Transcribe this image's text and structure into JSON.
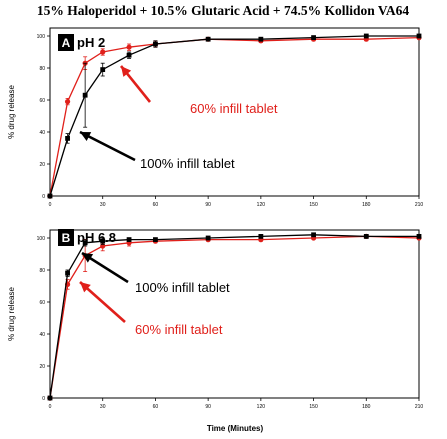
{
  "figure": {
    "title": "15% Haloperidol + 10.5% Glutaric Acid + 74.5% Kollidon VA64",
    "xlabel": "Time (Minutes)"
  },
  "colors": {
    "series_100": "#000000",
    "series_60": "#e0201b"
  },
  "chart_data": [
    {
      "type": "line",
      "panel_letter": "A",
      "panel_label": "pH 2",
      "xlabel": "",
      "ylabel": "% drug release",
      "xlim": [
        0,
        210
      ],
      "ylim": [
        0,
        105
      ],
      "xticks": [
        0,
        30,
        60,
        90,
        120,
        150,
        180,
        210
      ],
      "yticks": [
        0,
        20,
        40,
        60,
        80,
        100
      ],
      "grid": false,
      "annotations": [
        "60% infill tablet",
        "100% infill tablet"
      ],
      "series": [
        {
          "key": "100",
          "x": [
            0,
            10,
            20,
            30,
            45,
            60,
            90,
            120,
            150,
            180,
            210
          ],
          "y": [
            0,
            36,
            63,
            79,
            88,
            95,
            98,
            98,
            99,
            100,
            100
          ],
          "err": [
            0,
            3,
            20,
            4,
            2,
            2,
            1,
            1,
            1,
            1,
            1
          ]
        },
        {
          "key": "60",
          "x": [
            0,
            10,
            20,
            30,
            45,
            60,
            90,
            120,
            150,
            180,
            210
          ],
          "y": [
            0,
            59,
            83,
            90,
            93,
            95,
            98,
            97,
            98,
            98,
            99
          ],
          "err": [
            0,
            2,
            4,
            2,
            2,
            2,
            1,
            1,
            1,
            1,
            1
          ]
        }
      ]
    },
    {
      "type": "line",
      "panel_letter": "B",
      "panel_label": "pH 6.8",
      "xlabel": "Time (Minutes)",
      "ylabel": "% drug release",
      "xlim": [
        0,
        210
      ],
      "ylim": [
        0,
        105
      ],
      "xticks": [
        0,
        30,
        60,
        90,
        120,
        150,
        180,
        210
      ],
      "yticks": [
        0,
        20,
        40,
        60,
        80,
        100
      ],
      "grid": false,
      "annotations": [
        "100% infill tablet",
        "60% infill tablet"
      ],
      "series": [
        {
          "key": "100",
          "x": [
            0,
            10,
            20,
            30,
            45,
            60,
            90,
            120,
            150,
            180,
            210
          ],
          "y": [
            0,
            78,
            97,
            98,
            99,
            99,
            100,
            101,
            102,
            101,
            101
          ],
          "err": [
            0,
            2,
            2,
            2,
            1,
            1,
            1,
            1,
            1,
            1,
            1
          ]
        },
        {
          "key": "60",
          "x": [
            0,
            10,
            20,
            30,
            45,
            60,
            90,
            120,
            150,
            180,
            210
          ],
          "y": [
            0,
            71,
            89,
            95,
            97,
            98,
            99,
            99,
            100,
            101,
            100
          ],
          "err": [
            0,
            3,
            10,
            3,
            2,
            1,
            1,
            1,
            1,
            1,
            1
          ]
        }
      ]
    }
  ]
}
